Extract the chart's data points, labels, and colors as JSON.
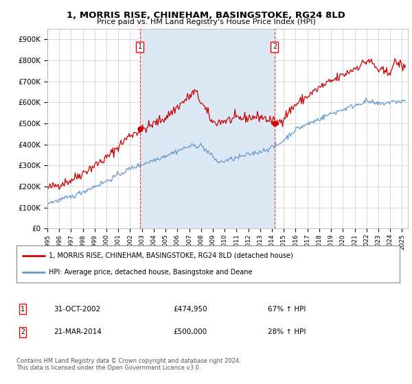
{
  "title": "1, MORRIS RISE, CHINEHAM, BASINGSTOKE, RG24 8LD",
  "subtitle": "Price paid vs. HM Land Registry's House Price Index (HPI)",
  "legend_line1": "1, MORRIS RISE, CHINEHAM, BASINGSTOKE, RG24 8LD (detached house)",
  "legend_line2": "HPI: Average price, detached house, Basingstoke and Deane",
  "sale1_label": "1",
  "sale1_date": "31-OCT-2002",
  "sale1_price": "£474,950",
  "sale1_hpi": "67% ↑ HPI",
  "sale1_x": 2002.83,
  "sale1_y": 474950,
  "sale2_label": "2",
  "sale2_date": "21-MAR-2014",
  "sale2_price": "£500,000",
  "sale2_hpi": "28% ↑ HPI",
  "sale2_x": 2014.22,
  "sale2_y": 500000,
  "footer": "Contains HM Land Registry data © Crown copyright and database right 2024.\nThis data is licensed under the Open Government Licence v3.0.",
  "price_line_color": "#cc0000",
  "hpi_line_color": "#6699cc",
  "shade_color": "#dce9f5",
  "background_color": "#e8f0f8",
  "ylim": [
    0,
    950000
  ],
  "xlim_start": 1995.0,
  "xlim_end": 2025.5,
  "yticks": [
    0,
    100000,
    200000,
    300000,
    400000,
    500000,
    600000,
    700000,
    800000,
    900000
  ],
  "ytick_labels": [
    "£0",
    "£100K",
    "£200K",
    "£300K",
    "£400K",
    "£500K",
    "£600K",
    "£700K",
    "£800K",
    "£900K"
  ],
  "xtick_years": [
    1995,
    1996,
    1997,
    1998,
    1999,
    2000,
    2001,
    2002,
    2003,
    2004,
    2005,
    2006,
    2007,
    2008,
    2009,
    2010,
    2011,
    2012,
    2013,
    2014,
    2015,
    2016,
    2017,
    2018,
    2019,
    2020,
    2021,
    2022,
    2023,
    2024,
    2025
  ]
}
